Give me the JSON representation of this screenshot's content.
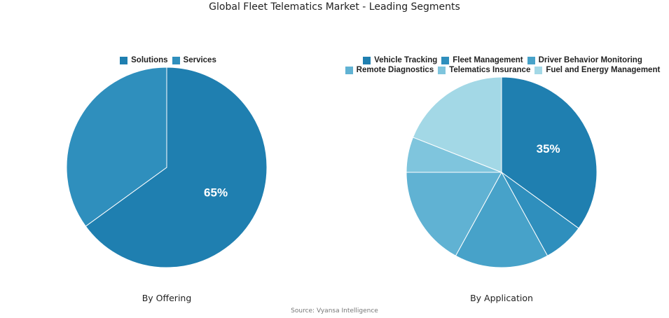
{
  "title": "Global Fleet Telematics Market - Leading Segments",
  "source": "Source: Vyansa Intelligence",
  "chart_data": [
    {
      "type": "pie",
      "caption": "By Offering",
      "categories": [
        "Solutions",
        "Services"
      ],
      "values": [
        65,
        35
      ],
      "colors": [
        "#1f7fb0",
        "#2f8fbd"
      ],
      "data_labels": [
        "65%",
        ""
      ]
    },
    {
      "type": "pie",
      "caption": "By Application",
      "categories": [
        "Vehicle Tracking",
        "Fleet Management",
        "Driver Behavior Monitoring",
        "Remote Diagnostics",
        "Telematics Insurance",
        "Fuel and Energy Management"
      ],
      "values": [
        35,
        7,
        16,
        17,
        6,
        19
      ],
      "colors": [
        "#1f7fb0",
        "#2f8fbd",
        "#47a2c9",
        "#60b2d3",
        "#7fc5dd",
        "#a3d8e6"
      ],
      "data_labels": [
        "35%",
        "",
        "",
        "",
        "",
        ""
      ]
    }
  ]
}
